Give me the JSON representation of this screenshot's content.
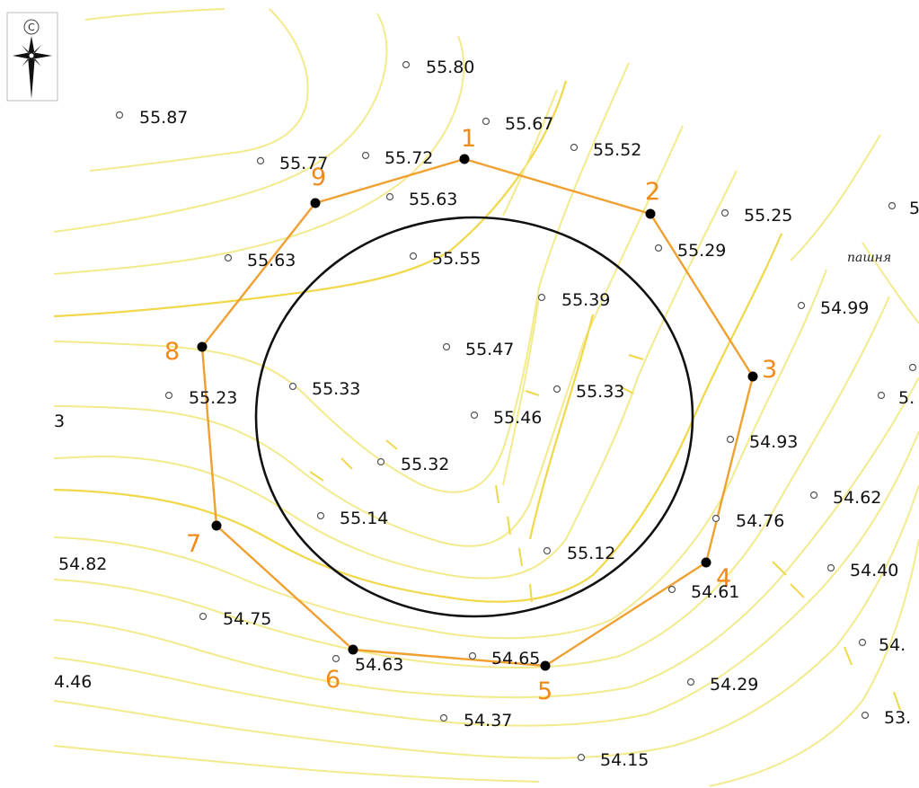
{
  "compass": {
    "north_letter": "С",
    "icon": "compass-rose-icon"
  },
  "land_label": "пашня",
  "colors": {
    "contour": "#f2ea8c",
    "contour_strong": "#f0d84a",
    "polygon": "#f0a030",
    "vertex_label": "#f08a1a",
    "circle": "#111111"
  },
  "spot_heights": [
    "55.80",
    "55.87",
    "55.67",
    "55.52",
    "55.77",
    "55.72",
    "55.63",
    "55.25",
    "55.63",
    "55.55",
    "55.29",
    "55.39",
    "54.99",
    "55.47",
    "55.23",
    "55.33",
    "55.33",
    "55.46",
    "54.93",
    "55.32",
    "54.62",
    "55.14",
    "54.76",
    "55.12",
    "54.82",
    "54.40",
    "54.61",
    "54.75",
    "54.65",
    "54.63",
    "54.29",
    "54.37",
    "54.15",
    "3",
    "4.46",
    "5",
    "5.",
    "54.",
    "53."
  ],
  "polygon_vertices": [
    "1",
    "2",
    "3",
    "4",
    "5",
    "6",
    "7",
    "8",
    "9"
  ]
}
